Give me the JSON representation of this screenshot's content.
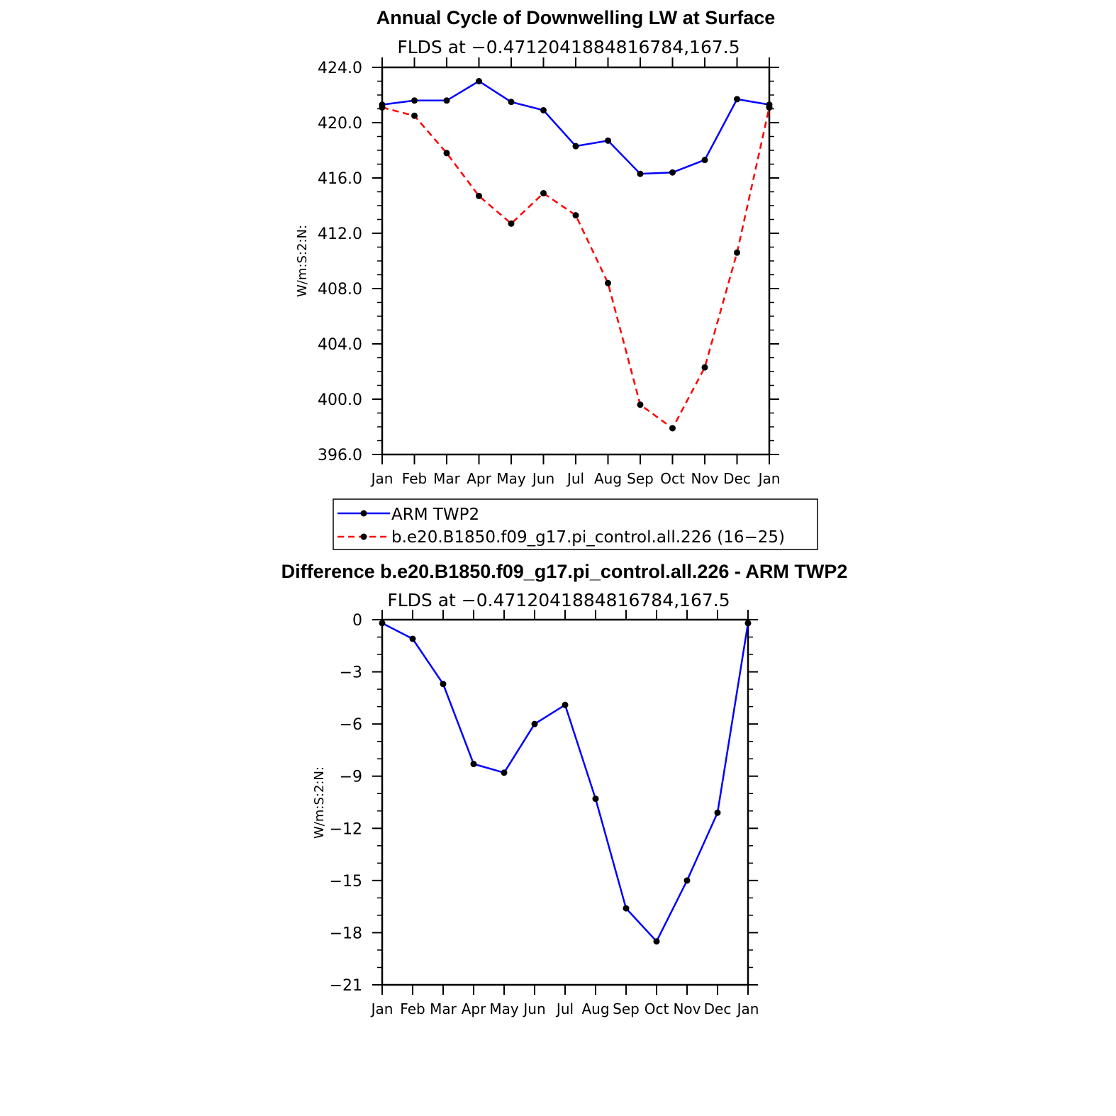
{
  "chart_data": [
    {
      "type": "line",
      "title": "Annual Cycle of Downwelling LW at Surface",
      "subtitle": "FLDS at −0.4712041884816784,167.5",
      "ylabel": "W/m:S:2:N:",
      "xlabel": "",
      "categories": [
        "Jan",
        "Feb",
        "Mar",
        "Apr",
        "May",
        "Jun",
        "Jul",
        "Aug",
        "Sep",
        "Oct",
        "Nov",
        "Dec",
        "Jan"
      ],
      "ylim": [
        396.0,
        424.0
      ],
      "yticks": [
        396.0,
        400.0,
        404.0,
        408.0,
        412.0,
        416.0,
        420.0,
        424.0
      ],
      "ytick_labels": [
        "396.0",
        "400.0",
        "404.0",
        "408.0",
        "412.0",
        "416.0",
        "420.0",
        "424.0"
      ],
      "grid": false,
      "legend_placement": "below",
      "series": [
        {
          "name": "ARM TWP2",
          "color": "#0000ff",
          "dash": "solid",
          "values": [
            421.3,
            421.6,
            421.6,
            423.0,
            421.5,
            420.9,
            418.3,
            418.7,
            416.3,
            416.4,
            417.3,
            421.7,
            421.3
          ]
        },
        {
          "name": "b.e20.B1850.f09_g17.pi_control.all.226 (16−25)",
          "color": "#ff0000",
          "dash": "dashed",
          "values": [
            421.1,
            420.5,
            417.8,
            414.7,
            412.7,
            414.9,
            413.3,
            408.4,
            399.6,
            397.9,
            402.3,
            410.6,
            421.1
          ]
        }
      ]
    },
    {
      "type": "line",
      "title": "Difference b.e20.B1850.f09_g17.pi_control.all.226 - ARM TWP2",
      "subtitle": "FLDS at −0.4712041884816784,167.5",
      "ylabel": "W/m:S:2:N:",
      "xlabel": "",
      "categories": [
        "Jan",
        "Feb",
        "Mar",
        "Apr",
        "May",
        "Jun",
        "Jul",
        "Aug",
        "Sep",
        "Oct",
        "Nov",
        "Dec",
        "Jan"
      ],
      "ylim": [
        -21,
        0
      ],
      "yticks": [
        0,
        -3,
        -6,
        -9,
        -12,
        -15,
        -18,
        -21
      ],
      "ytick_labels": [
        "0",
        "−3",
        "−6",
        "−9",
        "−12",
        "−15",
        "−18",
        "−21"
      ],
      "grid": false,
      "series": [
        {
          "name": "",
          "color": "#0000ff",
          "dash": "solid",
          "values": [
            -0.2,
            -1.1,
            -3.7,
            -8.3,
            -8.8,
            -6.0,
            -4.9,
            -10.3,
            -16.6,
            -18.5,
            -15.0,
            -11.1,
            -0.2
          ]
        }
      ]
    }
  ]
}
